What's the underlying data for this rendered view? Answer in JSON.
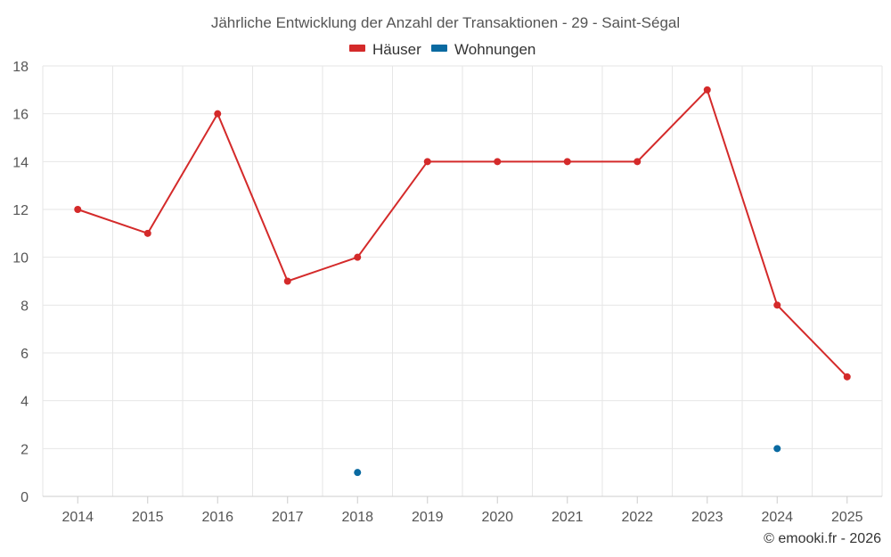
{
  "chart_data": {
    "type": "line",
    "title": "Jährliche Entwicklung der Anzahl der Transaktionen - 29 - Saint-Ségal",
    "categories": [
      "2014",
      "2015",
      "2016",
      "2017",
      "2018",
      "2019",
      "2020",
      "2021",
      "2022",
      "2023",
      "2024",
      "2025"
    ],
    "series": [
      {
        "name": "Häuser",
        "color": "#d42a2a",
        "values": [
          12,
          11,
          16,
          9,
          10,
          14,
          14,
          14,
          14,
          17,
          8,
          5
        ]
      },
      {
        "name": "Wohnungen",
        "color": "#0a6aa1",
        "values": [
          null,
          null,
          null,
          null,
          1,
          null,
          null,
          null,
          null,
          null,
          2,
          null
        ]
      }
    ],
    "ylim": [
      0,
      18
    ],
    "yticks": [
      0,
      2,
      4,
      6,
      8,
      10,
      12,
      14,
      16,
      18
    ],
    "grid": true,
    "legend": "top-center",
    "xlabel": "",
    "ylabel": ""
  },
  "credit": "© emooki.fr - 2026"
}
